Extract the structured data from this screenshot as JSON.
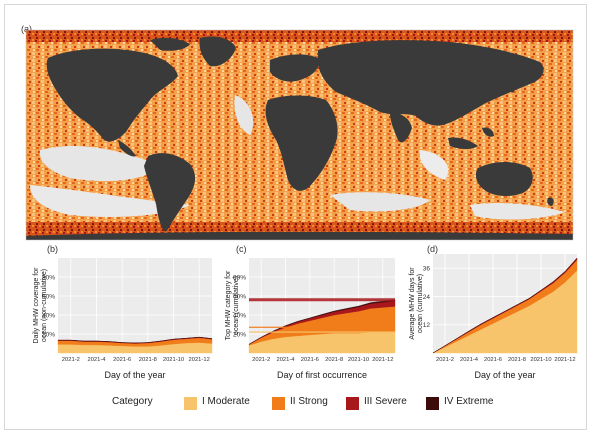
{
  "panel_labels": {
    "a": "(a)",
    "b": "(b)",
    "c": "(c)",
    "d": "(d)"
  },
  "colors": {
    "moderate": "#f8c46b",
    "strong": "#f07c1a",
    "severe": "#a8171b",
    "extreme": "#3e0b0b",
    "land": "#3a3a3a",
    "no_heatwave": "#e4e4e4",
    "plot_bg": "#ececec",
    "grid": "#ffffff"
  },
  "legend": {
    "title": "Category",
    "items": [
      {
        "key": "moderate",
        "label": "I Moderate"
      },
      {
        "key": "strong",
        "label": "II Strong"
      },
      {
        "key": "severe",
        "label": "III Severe"
      },
      {
        "key": "extreme",
        "label": "IV Extreme"
      }
    ]
  },
  "chart_data": [
    {
      "id": "a",
      "type": "heatmap",
      "title": "",
      "description_of_values": "global map of highest marine heatwave category per ocean grid cell; land shown dark grey",
      "categories": [
        "I Moderate",
        "II Strong",
        "III Severe",
        "IV Extreme"
      ]
    },
    {
      "id": "b",
      "type": "area",
      "xlabel": "Day of the year",
      "ylabel": "Daily MHW coverage for ocean (non-cumulative)",
      "x_ticks": [
        "2021-2",
        "2021-4",
        "2021-6",
        "2021-8",
        "2021-10",
        "2021-12"
      ],
      "y_ticks": [
        "20%",
        "40%",
        "60%",
        "80%"
      ],
      "ylim": [
        0,
        100
      ],
      "x": [
        "2021-1",
        "2021-2",
        "2021-3",
        "2021-4",
        "2021-5",
        "2021-6",
        "2021-7",
        "2021-8",
        "2021-9",
        "2021-10",
        "2021-11",
        "2021-12",
        "2021-12-31"
      ],
      "series": [
        {
          "name": "I Moderate",
          "values": [
            9,
            9,
            8.5,
            8.5,
            8,
            7.5,
            7,
            7,
            8,
            9.5,
            10.5,
            11,
            10
          ]
        },
        {
          "name": "II Strong",
          "values": [
            4,
            4,
            3.5,
            3.5,
            3.5,
            3,
            3,
            3.5,
            4,
            4.5,
            4.5,
            5,
            4.5
          ]
        },
        {
          "name": "III Severe",
          "values": [
            0.5,
            0.5,
            0.5,
            0.5,
            0.5,
            0.5,
            0.5,
            0.5,
            0.5,
            0.5,
            0.5,
            0.6,
            0.6
          ]
        },
        {
          "name": "IV Extreme",
          "values": [
            0.1,
            0.1,
            0.1,
            0.1,
            0.1,
            0.1,
            0.1,
            0.1,
            0.1,
            0.1,
            0.1,
            0.1,
            0.1
          ]
        }
      ]
    },
    {
      "id": "c",
      "type": "area",
      "xlabel": "Day of first occurrence",
      "ylabel": "Top MHW category for ocean (cumulative)",
      "x_ticks": [
        "2021-2",
        "2021-4",
        "2021-6",
        "2021-8",
        "2021-10",
        "2021-12"
      ],
      "y_ticks": [
        "20%",
        "40%",
        "60%",
        "80%"
      ],
      "ylim": [
        0,
        100
      ],
      "x": [
        "2021-1",
        "2021-2",
        "2021-3",
        "2021-4",
        "2021-5",
        "2021-6",
        "2021-7",
        "2021-8",
        "2021-9",
        "2021-10",
        "2021-11",
        "2021-12",
        "2021-12-31"
      ],
      "series": [
        {
          "name": "I Moderate",
          "values": [
            8,
            12,
            15,
            17,
            18,
            19,
            20,
            21,
            21,
            21,
            22,
            22,
            22
          ]
        },
        {
          "name": "II Strong",
          "values": [
            1,
            4,
            7,
            10,
            13,
            15,
            17,
            19,
            21,
            23,
            25,
            26,
            27
          ]
        },
        {
          "name": "III Severe",
          "values": [
            0.2,
            0.5,
            1,
            1.5,
            2,
            2.5,
            3,
            3.5,
            4,
            4.5,
            5,
            5.5,
            6
          ]
        },
        {
          "name": "IV Extreme",
          "values": [
            0,
            0.1,
            0.2,
            0.3,
            0.4,
            0.5,
            0.6,
            0.7,
            0.8,
            0.9,
            1,
            1,
            1
          ]
        }
      ],
      "reference_lines": [
        22,
        27,
        56
      ]
    },
    {
      "id": "d",
      "type": "area",
      "xlabel": "Day of the year",
      "ylabel": "Average MHW days for ocean (cumulative)",
      "x_ticks": [
        "2021-2",
        "2021-4",
        "2021-6",
        "2021-8",
        "2021-10",
        "2021-12"
      ],
      "y_ticks": [
        "12",
        "24",
        "36"
      ],
      "ylim": [
        0,
        42
      ],
      "x": [
        "2021-1",
        "2021-2",
        "2021-3",
        "2021-4",
        "2021-5",
        "2021-6",
        "2021-7",
        "2021-8",
        "2021-9",
        "2021-10",
        "2021-11",
        "2021-12",
        "2021-12-31"
      ],
      "series": [
        {
          "name": "I Moderate",
          "values": [
            0,
            2.5,
            5,
            7.5,
            10,
            12.5,
            15,
            17.5,
            20,
            23,
            26,
            30,
            35
          ]
        },
        {
          "name": "II Strong",
          "values": [
            0,
            0.5,
            1,
            1.5,
            2,
            2.2,
            2.4,
            2.6,
            2.8,
            3.2,
            3.6,
            4,
            4.5
          ]
        },
        {
          "name": "III Severe",
          "values": [
            0,
            0.1,
            0.2,
            0.3,
            0.3,
            0.3,
            0.3,
            0.3,
            0.3,
            0.4,
            0.5,
            0.5,
            0.7
          ]
        },
        {
          "name": "IV Extreme",
          "values": [
            0,
            0,
            0,
            0.05,
            0.05,
            0.05,
            0.05,
            0.05,
            0.05,
            0.05,
            0.1,
            0.1,
            0.1
          ]
        }
      ]
    }
  ]
}
